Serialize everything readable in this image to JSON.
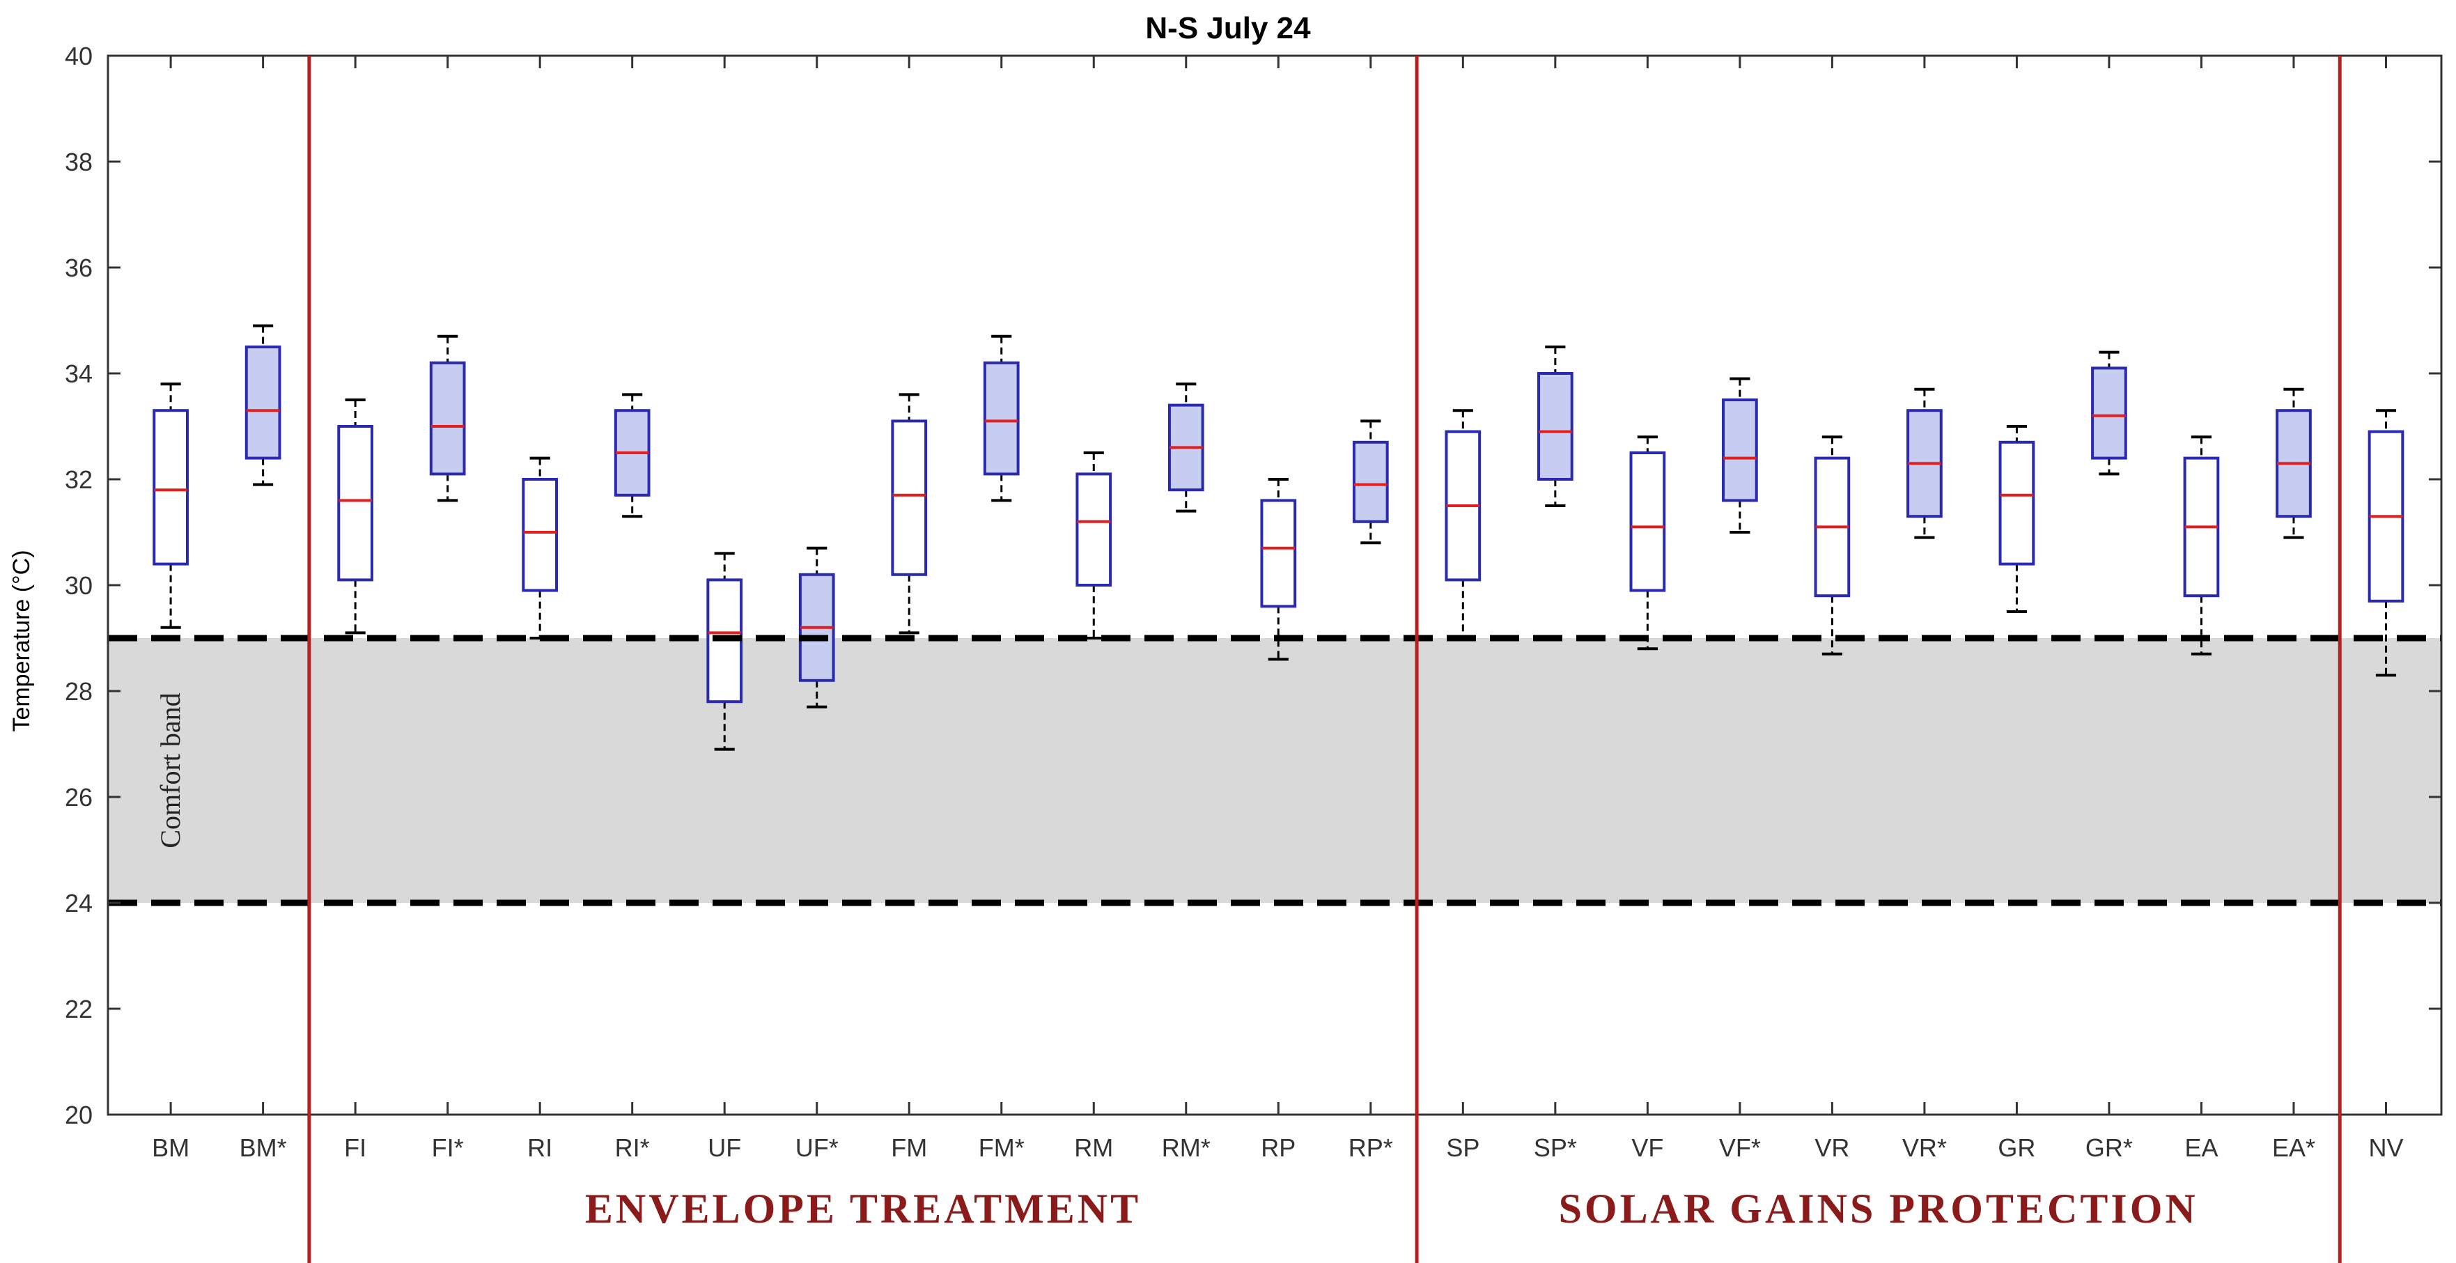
{
  "chart_data": {
    "type": "box",
    "title": "N-S July 24",
    "xlabel": "",
    "ylabel": "Temperature (°C)",
    "ylim": [
      20,
      40
    ],
    "yticks": [
      20,
      22,
      24,
      26,
      28,
      30,
      32,
      34,
      36,
      38,
      40
    ],
    "comfort_band": {
      "label": "Comfort band",
      "low": 24,
      "high": 29
    },
    "groups": [
      {
        "label": "ENVELOPE TREATMENT",
        "from": "FI",
        "to": "RP*"
      },
      {
        "label": "SOLAR GAINS PROTECTION",
        "from": "SP",
        "to": "EA*"
      }
    ],
    "series": [
      {
        "name": "base",
        "fill": "#ffffff"
      },
      {
        "name": "starred (*)",
        "fill": "#c7cdf0"
      }
    ],
    "boxes": [
      {
        "label": "BM",
        "min": 29.2,
        "q1": 30.4,
        "median": 31.8,
        "q3": 33.3,
        "max": 33.8,
        "filled": false
      },
      {
        "label": "BM*",
        "min": 31.9,
        "q1": 32.4,
        "median": 33.3,
        "q3": 34.5,
        "max": 34.9,
        "filled": true
      },
      {
        "label": "FI",
        "min": 29.1,
        "q1": 30.1,
        "median": 31.6,
        "q3": 33.0,
        "max": 33.5,
        "filled": false
      },
      {
        "label": "FI*",
        "min": 31.6,
        "q1": 32.1,
        "median": 33.0,
        "q3": 34.2,
        "max": 34.7,
        "filled": true
      },
      {
        "label": "RI",
        "min": 29.0,
        "q1": 29.9,
        "median": 31.0,
        "q3": 32.0,
        "max": 32.4,
        "filled": false
      },
      {
        "label": "RI*",
        "min": 31.3,
        "q1": 31.7,
        "median": 32.5,
        "q3": 33.3,
        "max": 33.6,
        "filled": true
      },
      {
        "label": "UF",
        "min": 26.9,
        "q1": 27.8,
        "median": 29.1,
        "q3": 30.1,
        "max": 30.6,
        "filled": false
      },
      {
        "label": "UF*",
        "min": 27.7,
        "q1": 28.2,
        "median": 29.2,
        "q3": 30.2,
        "max": 30.7,
        "filled": true
      },
      {
        "label": "FM",
        "min": 29.1,
        "q1": 30.2,
        "median": 31.7,
        "q3": 33.1,
        "max": 33.6,
        "filled": false
      },
      {
        "label": "FM*",
        "min": 31.6,
        "q1": 32.1,
        "median": 33.1,
        "q3": 34.2,
        "max": 34.7,
        "filled": true
      },
      {
        "label": "RM",
        "min": 29.0,
        "q1": 30.0,
        "median": 31.2,
        "q3": 32.1,
        "max": 32.5,
        "filled": false
      },
      {
        "label": "RM*",
        "min": 31.4,
        "q1": 31.8,
        "median": 32.6,
        "q3": 33.4,
        "max": 33.8,
        "filled": true
      },
      {
        "label": "RP",
        "min": 28.6,
        "q1": 29.6,
        "median": 30.7,
        "q3": 31.6,
        "max": 32.0,
        "filled": false
      },
      {
        "label": "RP*",
        "min": 30.8,
        "q1": 31.2,
        "median": 31.9,
        "q3": 32.7,
        "max": 33.1,
        "filled": true
      },
      {
        "label": "SP",
        "min": 29.0,
        "q1": 30.1,
        "median": 31.5,
        "q3": 32.9,
        "max": 33.3,
        "filled": false
      },
      {
        "label": "SP*",
        "min": 31.5,
        "q1": 32.0,
        "median": 32.9,
        "q3": 34.0,
        "max": 34.5,
        "filled": true
      },
      {
        "label": "VF",
        "min": 28.8,
        "q1": 29.9,
        "median": 31.1,
        "q3": 32.5,
        "max": 32.8,
        "filled": false
      },
      {
        "label": "VF*",
        "min": 31.0,
        "q1": 31.6,
        "median": 32.4,
        "q3": 33.5,
        "max": 33.9,
        "filled": true
      },
      {
        "label": "VR",
        "min": 28.7,
        "q1": 29.8,
        "median": 31.1,
        "q3": 32.4,
        "max": 32.8,
        "filled": false
      },
      {
        "label": "VR*",
        "min": 30.9,
        "q1": 31.3,
        "median": 32.3,
        "q3": 33.3,
        "max": 33.7,
        "filled": true
      },
      {
        "label": "GR",
        "min": 29.5,
        "q1": 30.4,
        "median": 31.7,
        "q3": 32.7,
        "max": 33.0,
        "filled": false
      },
      {
        "label": "GR*",
        "min": 32.1,
        "q1": 32.4,
        "median": 33.2,
        "q3": 34.1,
        "max": 34.4,
        "filled": true
      },
      {
        "label": "EA",
        "min": 28.7,
        "q1": 29.8,
        "median": 31.1,
        "q3": 32.4,
        "max": 32.8,
        "filled": false
      },
      {
        "label": "EA*",
        "min": 30.9,
        "q1": 31.3,
        "median": 32.3,
        "q3": 33.3,
        "max": 33.7,
        "filled": true
      },
      {
        "label": "NV",
        "min": 28.3,
        "q1": 29.7,
        "median": 31.3,
        "q3": 32.9,
        "max": 33.3,
        "filled": false
      }
    ],
    "colors": {
      "box_edge": "#2a2ab0",
      "box_fill_starred": "#c7cdf0",
      "median": "#e02020",
      "whisker": "#000000",
      "separator": "#b52020",
      "group_label": "#8b1a1a",
      "band_fill": "#d9d9d9",
      "band_edge": "#000000"
    }
  }
}
